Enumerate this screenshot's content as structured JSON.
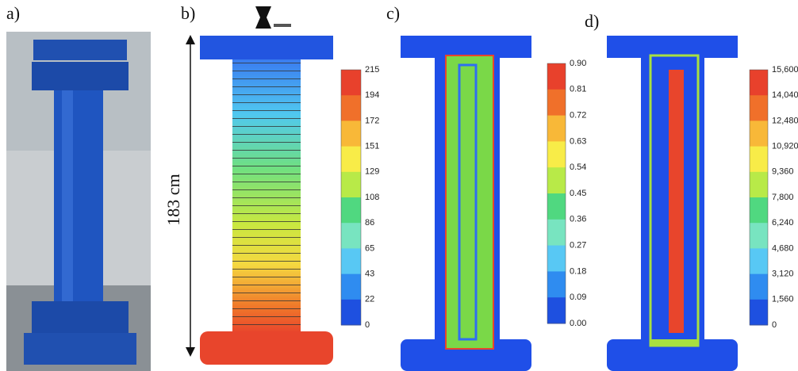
{
  "panels": [
    {
      "label": "a)"
    },
    {
      "label": "b)",
      "dimension": "183 cm",
      "colorbar": [
        "215",
        "194",
        "172",
        "151",
        "129",
        "108",
        "86",
        "65",
        "43",
        "22",
        "0"
      ]
    },
    {
      "label": "c)",
      "colorbar": [
        "0.90",
        "0.81",
        "0.72",
        "0.63",
        "0.54",
        "0.45",
        "0.36",
        "0.27",
        "0.18",
        "0.09",
        "0.00"
      ]
    },
    {
      "label": "d)",
      "colorbar": [
        "15,600",
        "14,040",
        "12,480",
        "10,920",
        "9,360",
        "7,800",
        "6,240",
        "4,680",
        "3,120",
        "1,560",
        "0"
      ]
    }
  ]
}
